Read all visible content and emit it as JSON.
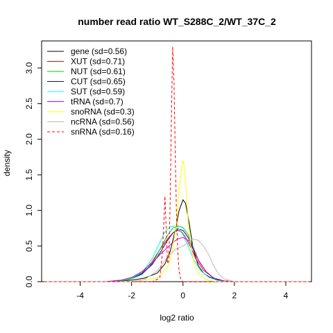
{
  "chart_data": {
    "type": "line",
    "title": "number read ratio WT_S288C_2/WT_37C_2",
    "xlabel": "log2 ratio",
    "ylabel": "density",
    "xlim": [
      -5.5,
      5.0
    ],
    "ylim": [
      0,
      3.38
    ],
    "xticks": [
      {
        "value": -4,
        "label": "-4"
      },
      {
        "value": -2,
        "label": "-2"
      },
      {
        "value": 0,
        "label": "0"
      },
      {
        "value": 2,
        "label": "2"
      },
      {
        "value": 4,
        "label": "4"
      }
    ],
    "yticks": [
      {
        "value": 0,
        "label": "0.0"
      },
      {
        "value": 0.5,
        "label": "0.5"
      },
      {
        "value": 1.0,
        "label": "1.0"
      },
      {
        "value": 1.5,
        "label": "1.5"
      },
      {
        "value": 2.0,
        "label": "2.0"
      },
      {
        "value": 2.5,
        "label": "2.5"
      },
      {
        "value": 3.0,
        "label": "3.0"
      }
    ],
    "grid": false,
    "legend_position": "top-left",
    "series": [
      {
        "name": "gene (sd=0.56)",
        "color": "#000000",
        "dash": "solid",
        "x": [
          -5.4,
          -3.0,
          -2.0,
          -1.5,
          -1.0,
          -0.7,
          -0.5,
          -0.3,
          -0.15,
          0.0,
          0.1,
          0.25,
          0.4,
          0.6,
          0.8,
          1.0,
          1.3,
          1.6,
          2.0,
          3.0,
          4.9
        ],
        "y": [
          0,
          0.0,
          0.02,
          0.05,
          0.12,
          0.25,
          0.42,
          0.72,
          1.0,
          1.15,
          1.1,
          0.8,
          0.45,
          0.22,
          0.12,
          0.07,
          0.03,
          0.01,
          0,
          0,
          0
        ]
      },
      {
        "name": "XUT (sd=0.71)",
        "color": "#ff0000",
        "dash": "solid",
        "x": [
          -5.4,
          -3.0,
          -2.4,
          -2.0,
          -1.6,
          -1.2,
          -0.9,
          -0.6,
          -0.4,
          -0.2,
          -0.05,
          0.1,
          0.3,
          0.5,
          0.8,
          1.2,
          1.6,
          2.0,
          3.0,
          4.9
        ],
        "y": [
          0,
          0.0,
          0.02,
          0.05,
          0.12,
          0.28,
          0.45,
          0.6,
          0.68,
          0.72,
          0.7,
          0.62,
          0.48,
          0.32,
          0.16,
          0.05,
          0.01,
          0,
          0,
          0
        ]
      },
      {
        "name": "NUT (sd=0.61)",
        "color": "#00cc00",
        "dash": "solid",
        "x": [
          -5.4,
          -3.0,
          -2.4,
          -2.0,
          -1.6,
          -1.2,
          -0.9,
          -0.6,
          -0.4,
          -0.2,
          0.0,
          0.2,
          0.4,
          0.6,
          0.9,
          1.2,
          1.6,
          2.0,
          3.0,
          4.9
        ],
        "y": [
          0,
          0.0,
          0.01,
          0.04,
          0.1,
          0.25,
          0.45,
          0.65,
          0.75,
          0.78,
          0.76,
          0.66,
          0.48,
          0.3,
          0.14,
          0.05,
          0.01,
          0,
          0,
          0
        ]
      },
      {
        "name": "CUT (sd=0.65)",
        "color": "#0000cc",
        "dash": "solid",
        "x": [
          -5.4,
          -3.0,
          -2.4,
          -2.0,
          -1.6,
          -1.2,
          -0.9,
          -0.6,
          -0.4,
          -0.2,
          0.0,
          0.2,
          0.4,
          0.6,
          0.9,
          1.2,
          1.6,
          2.0,
          3.0,
          4.9
        ],
        "y": [
          0,
          0.0,
          0.02,
          0.05,
          0.11,
          0.24,
          0.4,
          0.58,
          0.68,
          0.74,
          0.72,
          0.62,
          0.46,
          0.3,
          0.14,
          0.05,
          0.01,
          0,
          0,
          0
        ]
      },
      {
        "name": "SUT (sd=0.59)",
        "color": "#00ffff",
        "dash": "solid",
        "x": [
          -5.4,
          -3.0,
          -2.4,
          -2.0,
          -1.6,
          -1.2,
          -0.9,
          -0.7,
          -0.5,
          -0.35,
          -0.2,
          0.0,
          0.2,
          0.4,
          0.7,
          1.0,
          1.4,
          2.0,
          3.0,
          4.9
        ],
        "y": [
          0,
          0.0,
          0.02,
          0.05,
          0.13,
          0.32,
          0.55,
          0.7,
          0.77,
          0.78,
          0.76,
          0.66,
          0.5,
          0.32,
          0.15,
          0.06,
          0.01,
          0,
          0,
          0
        ]
      },
      {
        "name": "tRNA (sd=0.7)",
        "color": "#cc00cc",
        "dash": "solid",
        "x": [
          -5.4,
          -3.0,
          -2.4,
          -2.0,
          -1.6,
          -1.2,
          -0.9,
          -0.6,
          -0.4,
          -0.2,
          0.0,
          0.2,
          0.4,
          0.6,
          0.9,
          1.2,
          1.6,
          2.0,
          3.0,
          4.9
        ],
        "y": [
          0,
          0.0,
          0.02,
          0.06,
          0.14,
          0.26,
          0.38,
          0.48,
          0.55,
          0.6,
          0.62,
          0.58,
          0.45,
          0.3,
          0.14,
          0.05,
          0.01,
          0,
          0,
          0
        ]
      },
      {
        "name": "snoRNA (sd=0.3)",
        "color": "#ffff00",
        "dash": "solid",
        "x": [
          -5.4,
          -2.0,
          -1.0,
          -0.6,
          -0.4,
          -0.25,
          -0.15,
          -0.05,
          0.0,
          0.05,
          0.12,
          0.2,
          0.3,
          0.45,
          0.6,
          0.8,
          1.0,
          1.3,
          2.0,
          4.9
        ],
        "y": [
          0,
          0,
          0.05,
          0.2,
          0.45,
          0.85,
          1.3,
          1.62,
          1.7,
          1.62,
          1.3,
          0.85,
          0.5,
          0.25,
          0.12,
          0.05,
          0.02,
          0,
          0,
          0
        ]
      },
      {
        "name": "ncRNA (sd=0.56)",
        "color": "#bbbbbb",
        "dash": "solid",
        "x": [
          -5.4,
          -2.0,
          -1.5,
          -1.0,
          -0.6,
          -0.3,
          0.0,
          0.2,
          0.4,
          0.6,
          0.8,
          1.0,
          1.2,
          1.4,
          1.6,
          2.0,
          3.0,
          4.9
        ],
        "y": [
          0,
          0,
          0.03,
          0.15,
          0.35,
          0.45,
          0.5,
          0.55,
          0.6,
          0.58,
          0.5,
          0.38,
          0.22,
          0.1,
          0.04,
          0,
          0,
          0
        ]
      },
      {
        "name": "snRNA (sd=0.16)",
        "color": "#ff0000",
        "dash": "dashed",
        "x": [
          -5.4,
          -1.2,
          -0.9,
          -0.8,
          -0.7,
          -0.65,
          -0.6,
          -0.55,
          -0.5,
          -0.45,
          -0.4,
          -0.35,
          -0.3,
          -0.25,
          -0.2,
          -0.15,
          -0.1,
          -0.05,
          0.0,
          0.1,
          0.3,
          4.9
        ],
        "y": [
          0,
          0,
          0.05,
          0.4,
          1.2,
          0.7,
          0.25,
          0.3,
          1.1,
          2.3,
          3.3,
          2.8,
          1.8,
          0.9,
          0.4,
          0.15,
          0.05,
          0.02,
          0,
          0,
          0,
          0
        ]
      }
    ]
  }
}
